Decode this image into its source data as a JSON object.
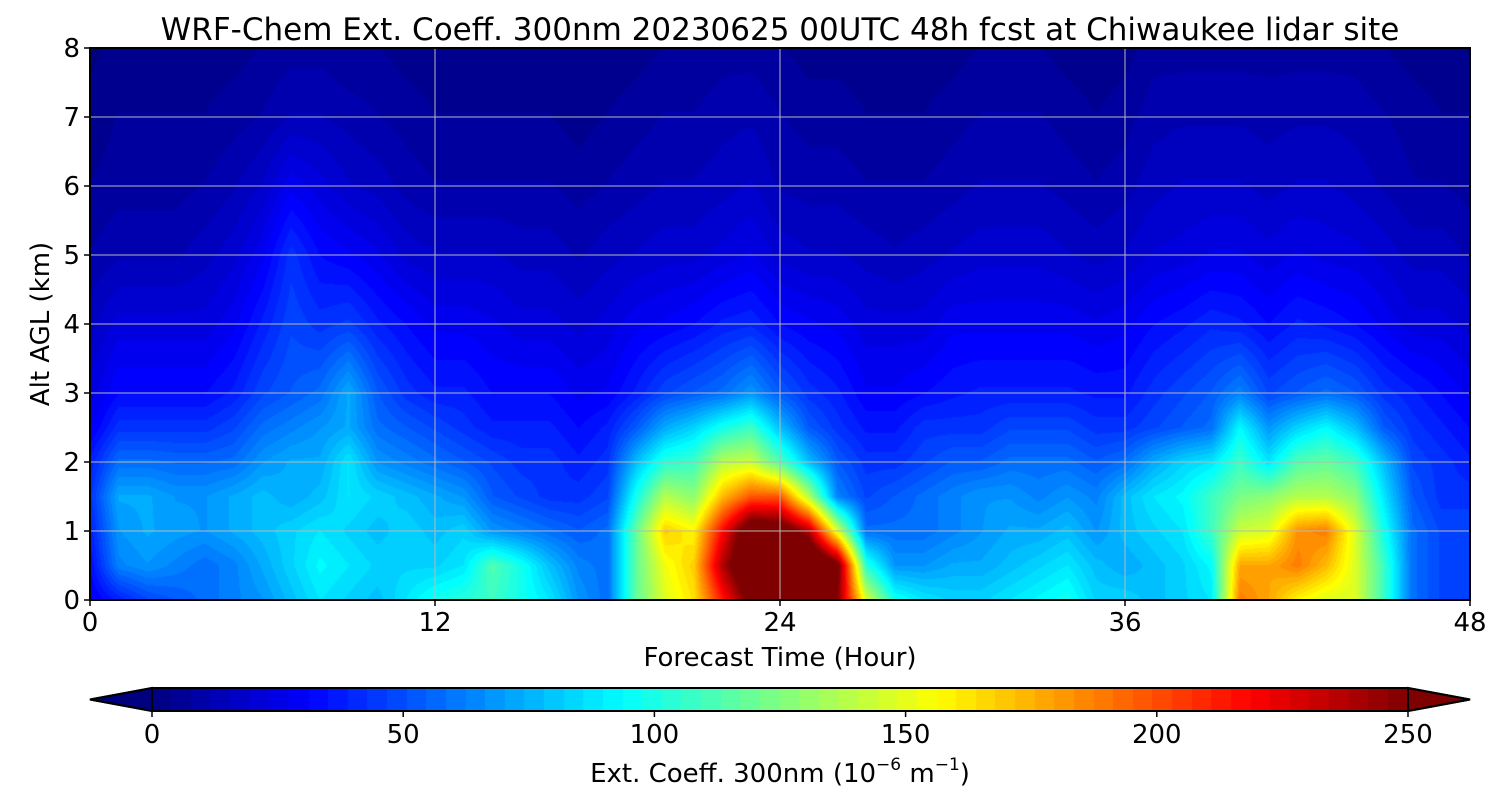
{
  "chart_data": {
    "type": "heatmap",
    "title": "WRF-Chem Ext. Coeff. 300nm  20230625 00UTC 48h fcst at Chiwaukee lidar site",
    "xlabel": "Forecast Time (Hour)",
    "ylabel": "Alt AGL (km)",
    "xlim": [
      0,
      48
    ],
    "ylim": [
      0,
      8
    ],
    "x_ticks": [
      0,
      12,
      24,
      36,
      48
    ],
    "y_ticks": [
      0,
      1,
      2,
      3,
      4,
      5,
      6,
      7,
      8
    ],
    "grid": true,
    "colormap": "jet",
    "colorbar": {
      "orientation": "horizontal",
      "placement": "bottom",
      "label_main": "Ext. Coeff. 300nm  (10",
      "label_exp1": "−6",
      "label_mid": " m",
      "label_exp2": "−1",
      "label_end": ")",
      "range": [
        0,
        250
      ],
      "ticks": [
        0,
        50,
        100,
        150,
        200,
        250
      ],
      "extend": "both",
      "under_color": "#00007f",
      "over_color": "#7f0000"
    },
    "field": {
      "x": [
        0,
        1,
        2,
        3,
        4,
        5,
        6,
        7,
        8,
        9,
        10,
        11,
        12,
        13,
        14,
        15,
        16,
        17,
        18,
        19,
        20,
        21,
        22,
        23,
        24,
        25,
        26,
        27,
        28,
        29,
        30,
        31,
        32,
        33,
        34,
        35,
        36,
        37,
        38,
        39,
        40,
        41,
        42,
        43,
        44,
        45,
        46,
        47,
        48
      ],
      "y": [
        0,
        0.5,
        1,
        1.5,
        2,
        2.5,
        3,
        4,
        5,
        6,
        7,
        8
      ],
      "values": [
        [
          30,
          40,
          50,
          55,
          60,
          65,
          70,
          80,
          90,
          85,
          80,
          90,
          100,
          105,
          110,
          100,
          90,
          70,
          60,
          120,
          150,
          165,
          215,
          260,
          290,
          285,
          250,
          150,
          100,
          90,
          85,
          85,
          90,
          95,
          100,
          85,
          85,
          80,
          85,
          90,
          190,
          180,
          160,
          150,
          150,
          110,
          60,
          50,
          50
        ],
        [
          35,
          65,
          70,
          65,
          60,
          65,
          75,
          85,
          95,
          90,
          85,
          85,
          85,
          90,
          115,
          100,
          80,
          65,
          60,
          120,
          155,
          170,
          240,
          285,
          300,
          295,
          260,
          105,
          70,
          70,
          75,
          75,
          80,
          85,
          90,
          80,
          75,
          80,
          85,
          95,
          180,
          180,
          190,
          175,
          150,
          110,
          60,
          50,
          50
        ],
        [
          40,
          70,
          75,
          72,
          70,
          75,
          80,
          85,
          90,
          85,
          80,
          85,
          80,
          85,
          70,
          65,
          60,
          55,
          60,
          120,
          170,
          160,
          220,
          275,
          270,
          240,
          150,
          60,
          60,
          60,
          65,
          70,
          75,
          75,
          80,
          70,
          80,
          85,
          90,
          110,
          145,
          150,
          185,
          190,
          150,
          100,
          60,
          50,
          50
        ],
        [
          45,
          75,
          75,
          70,
          70,
          75,
          80,
          75,
          80,
          90,
          85,
          80,
          75,
          70,
          55,
          50,
          45,
          45,
          50,
          100,
          140,
          130,
          175,
          200,
          200,
          140,
          65,
          50,
          55,
          60,
          65,
          70,
          70,
          65,
          70,
          65,
          80,
          90,
          95,
          110,
          125,
          130,
          140,
          140,
          130,
          90,
          55,
          45,
          45
        ],
        [
          40,
          60,
          60,
          58,
          58,
          60,
          70,
          75,
          75,
          90,
          70,
          65,
          60,
          55,
          50,
          45,
          45,
          40,
          45,
          80,
          105,
          110,
          140,
          145,
          115,
          80,
          55,
          45,
          45,
          50,
          55,
          55,
          60,
          60,
          60,
          55,
          60,
          75,
          85,
          90,
          110,
          90,
          115,
          120,
          110,
          80,
          50,
          45,
          40
        ],
        [
          30,
          45,
          45,
          45,
          45,
          50,
          60,
          65,
          70,
          75,
          60,
          55,
          50,
          45,
          40,
          40,
          40,
          35,
          40,
          55,
          75,
          85,
          100,
          110,
          80,
          55,
          45,
          38,
          38,
          45,
          45,
          45,
          50,
          50,
          50,
          45,
          45,
          50,
          55,
          60,
          95,
          70,
          85,
          95,
          80,
          55,
          45,
          40,
          35
        ],
        [
          25,
          35,
          35,
          35,
          35,
          40,
          50,
          55,
          60,
          75,
          55,
          45,
          40,
          40,
          35,
          35,
          35,
          30,
          32,
          40,
          50,
          55,
          60,
          70,
          55,
          45,
          40,
          32,
          32,
          35,
          38,
          40,
          40,
          40,
          40,
          38,
          38,
          45,
          50,
          55,
          65,
          50,
          55,
          60,
          55,
          45,
          40,
          35,
          30
        ],
        [
          18,
          25,
          25,
          25,
          25,
          30,
          40,
          50,
          45,
          48,
          40,
          35,
          30,
          30,
          28,
          25,
          25,
          22,
          25,
          30,
          32,
          35,
          40,
          42,
          35,
          32,
          30,
          25,
          25,
          25,
          30,
          30,
          30,
          30,
          30,
          28,
          30,
          35,
          38,
          42,
          40,
          35,
          40,
          38,
          35,
          30,
          25,
          25,
          22
        ],
        [
          12,
          15,
          15,
          15,
          18,
          22,
          30,
          45,
          35,
          32,
          28,
          22,
          20,
          20,
          20,
          18,
          18,
          15,
          18,
          20,
          22,
          22,
          25,
          28,
          22,
          20,
          20,
          18,
          16,
          18,
          20,
          22,
          22,
          22,
          20,
          18,
          20,
          24,
          25,
          28,
          28,
          25,
          28,
          26,
          25,
          22,
          18,
          18,
          15
        ],
        [
          8,
          10,
          10,
          10,
          12,
          15,
          20,
          30,
          25,
          20,
          18,
          14,
          12,
          12,
          12,
          12,
          12,
          10,
          12,
          14,
          16,
          16,
          18,
          20,
          15,
          14,
          14,
          12,
          12,
          12,
          14,
          16,
          16,
          16,
          14,
          12,
          14,
          18,
          20,
          20,
          20,
          18,
          20,
          20,
          18,
          15,
          12,
          12,
          10
        ],
        [
          5,
          8,
          8,
          8,
          8,
          10,
          12,
          16,
          16,
          14,
          12,
          10,
          8,
          8,
          8,
          8,
          8,
          6,
          8,
          10,
          12,
          12,
          14,
          15,
          12,
          10,
          10,
          8,
          8,
          8,
          10,
          12,
          12,
          12,
          10,
          8,
          10,
          14,
          15,
          15,
          15,
          14,
          15,
          15,
          14,
          12,
          10,
          8,
          8
        ],
        [
          3,
          5,
          5,
          5,
          5,
          6,
          8,
          10,
          10,
          8,
          8,
          6,
          5,
          5,
          5,
          5,
          5,
          4,
          5,
          6,
          8,
          8,
          10,
          10,
          8,
          6,
          6,
          5,
          5,
          5,
          6,
          8,
          8,
          8,
          6,
          5,
          6,
          10,
          10,
          10,
          10,
          10,
          10,
          10,
          10,
          8,
          6,
          5,
          5
        ]
      ]
    }
  }
}
